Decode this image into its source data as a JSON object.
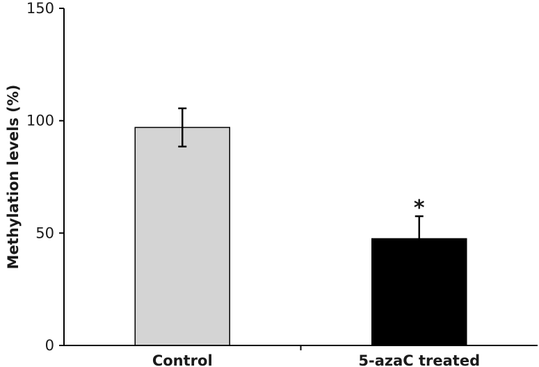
{
  "chart_data": {
    "type": "bar",
    "title": "",
    "xlabel": "",
    "ylabel": "Methylation levels (%)",
    "ylim": [
      0,
      150
    ],
    "yticks": [
      0,
      50,
      100,
      150
    ],
    "categories": [
      "Control",
      "5-azaC treated"
    ],
    "values": [
      97,
      47.5
    ],
    "errors": [
      8.5,
      10
    ],
    "bar_colors": [
      "#d4d4d4",
      "#000000"
    ],
    "annotations": [
      "",
      "*"
    ],
    "grid": false,
    "legend": "none"
  }
}
